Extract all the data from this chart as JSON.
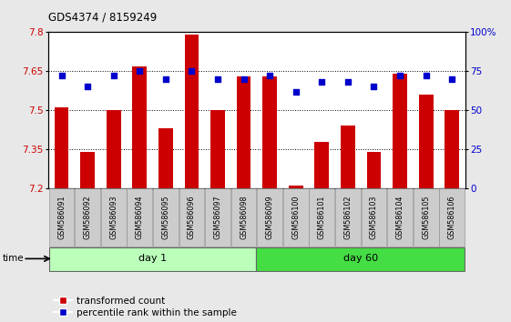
{
  "title": "GDS4374 / 8159249",
  "samples": [
    "GSM586091",
    "GSM586092",
    "GSM586093",
    "GSM586094",
    "GSM586095",
    "GSM586096",
    "GSM586097",
    "GSM586098",
    "GSM586099",
    "GSM586100",
    "GSM586101",
    "GSM586102",
    "GSM586103",
    "GSM586104",
    "GSM586105",
    "GSM586106"
  ],
  "bar_values": [
    7.51,
    7.34,
    7.5,
    7.67,
    7.43,
    7.79,
    7.5,
    7.63,
    7.63,
    7.21,
    7.38,
    7.44,
    7.34,
    7.64,
    7.56,
    7.5
  ],
  "dot_values": [
    72,
    65,
    72,
    75,
    70,
    75,
    70,
    70,
    72,
    62,
    68,
    68,
    65,
    72,
    72,
    70
  ],
  "ylim_left": [
    7.2,
    7.8
  ],
  "ylim_right": [
    0,
    100
  ],
  "yticks_left": [
    7.2,
    7.35,
    7.5,
    7.65,
    7.8
  ],
  "yticks_right": [
    0,
    25,
    50,
    75,
    100
  ],
  "ytick_labels_left": [
    "7.2",
    "7.35",
    "7.5",
    "7.65",
    "7.8"
  ],
  "ytick_labels_right": [
    "0",
    "25",
    "50",
    "75",
    "100%"
  ],
  "hgrid_values": [
    7.35,
    7.5,
    7.65
  ],
  "bar_color": "#cc0000",
  "dot_color": "#0000cc",
  "bar_bottom": 7.2,
  "day1_count": 8,
  "day1_label": "day 1",
  "day60_label": "day 60",
  "day1_color": "#bbffbb",
  "day60_color": "#44dd44",
  "time_label": "time",
  "legend_bar_label": "transformed count",
  "legend_dot_label": "percentile rank within the sample",
  "fig_bg": "#e8e8e8",
  "plot_bg": "#ffffff",
  "tick_label_bg": "#cccccc"
}
